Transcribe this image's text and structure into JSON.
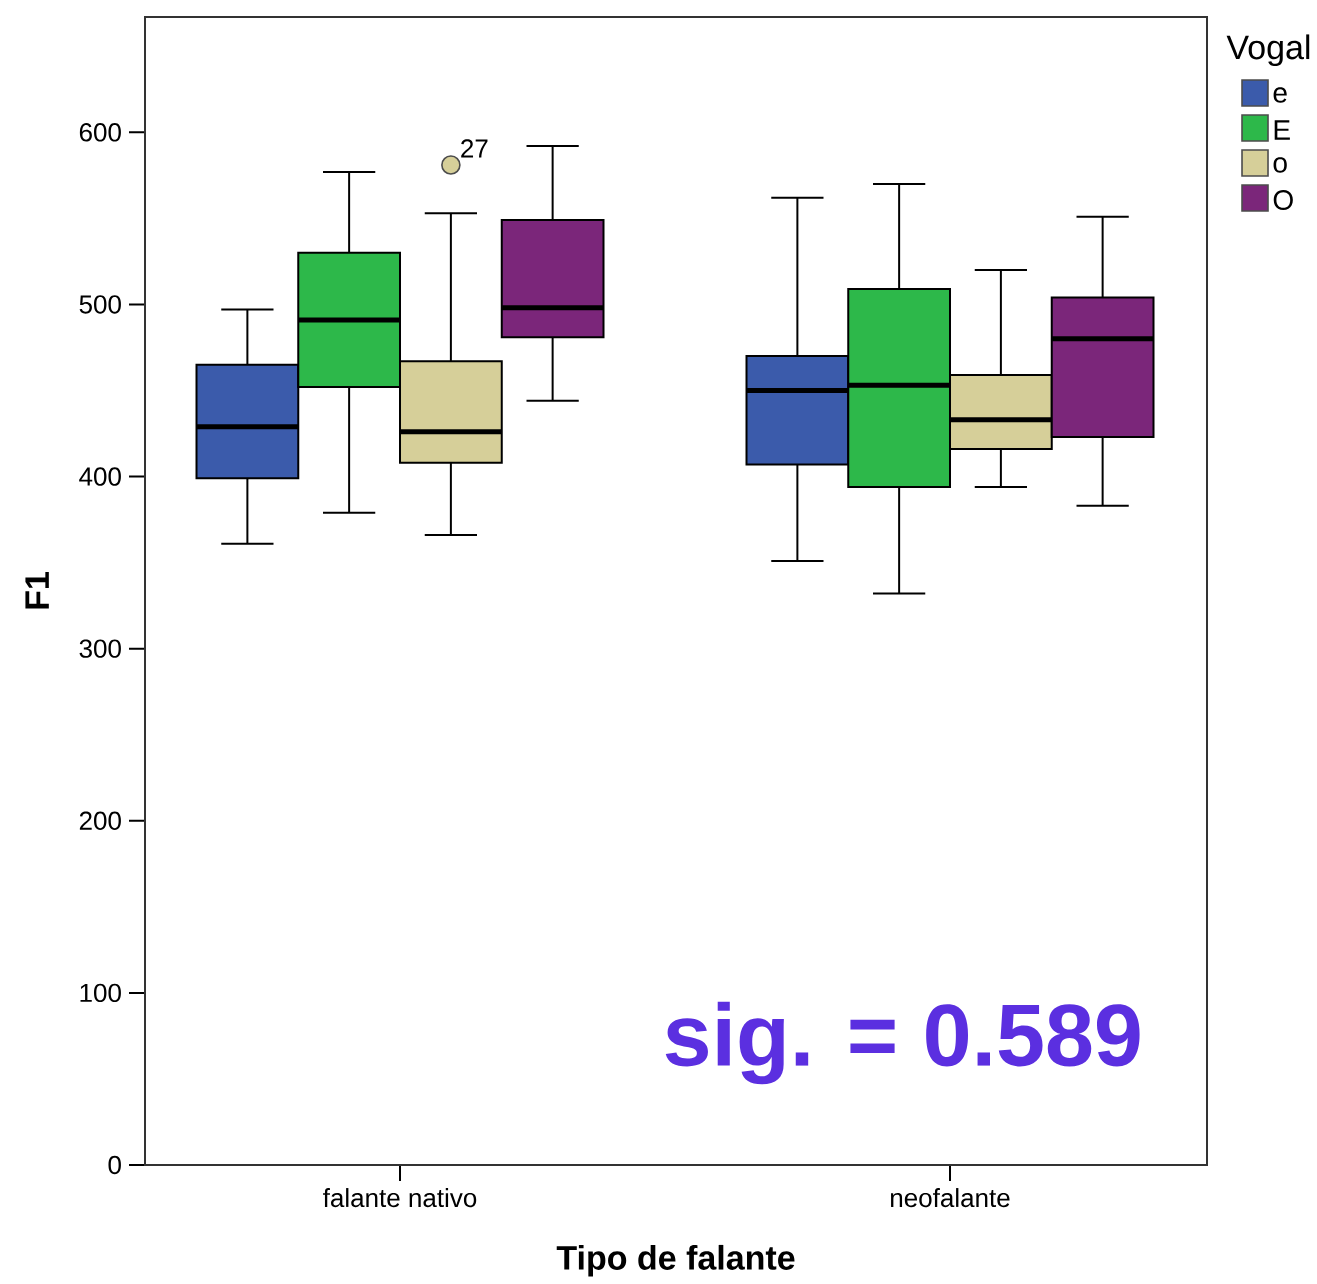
{
  "chart_data": {
    "type": "box",
    "xlabel": "Tipo de falante",
    "ylabel": "F1",
    "legend_title": "Vogal",
    "legend": "top right",
    "categories": [
      "falante nativo",
      "neofalante"
    ],
    "ylim": [
      0,
      667
    ],
    "yticks": [
      0,
      100,
      200,
      300,
      400,
      500,
      600
    ],
    "series": [
      {
        "name": "e",
        "color": "#3b5bab",
        "boxes": [
          {
            "low": 361,
            "q1": 399,
            "median": 429,
            "q3": 465,
            "high": 497
          },
          {
            "low": 351,
            "q1": 407,
            "median": 450,
            "q3": 470,
            "high": 562
          }
        ]
      },
      {
        "name": "E",
        "color": "#2db84a",
        "boxes": [
          {
            "low": 379,
            "q1": 452,
            "median": 491,
            "q3": 530,
            "high": 577
          },
          {
            "low": 332,
            "q1": 394,
            "median": 453,
            "q3": 509,
            "high": 570
          }
        ]
      },
      {
        "name": "o",
        "color": "#d6cf99",
        "boxes": [
          {
            "low": 366,
            "q1": 408,
            "median": 426,
            "q3": 467,
            "high": 553,
            "outliers": [
              581
            ]
          },
          {
            "low": 394,
            "q1": 416,
            "median": 433,
            "q3": 459,
            "high": 520
          }
        ]
      },
      {
        "name": "O",
        "color": "#7b267a",
        "boxes": [
          {
            "low": 444,
            "q1": 481,
            "median": 498,
            "q3": 549,
            "high": 592
          },
          {
            "low": 383,
            "q1": 423,
            "median": 480,
            "q3": 504,
            "high": 551
          }
        ]
      }
    ],
    "annotations": [
      "27",
      "sig. = 0.589"
    ]
  }
}
